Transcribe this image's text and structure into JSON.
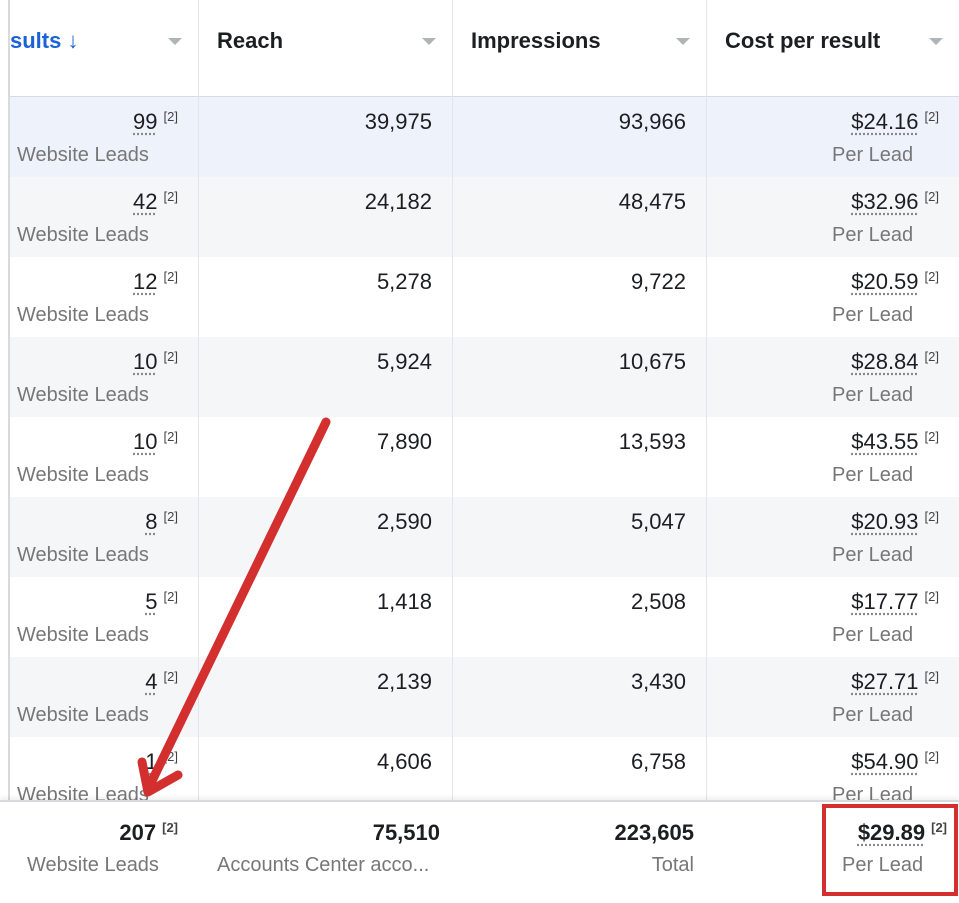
{
  "columns": [
    {
      "label": "sults ↓",
      "sorted": true
    },
    {
      "label": "Reach"
    },
    {
      "label": "Impressions"
    },
    {
      "label": "Cost per result"
    }
  ],
  "footnote": "[2]",
  "rows": [
    {
      "results": "99",
      "result_type": "Website Leads",
      "reach": "39,975",
      "impressions": "93,966",
      "cost": "$24.16",
      "cost_type": "Per Lead"
    },
    {
      "results": "42",
      "result_type": "Website Leads",
      "reach": "24,182",
      "impressions": "48,475",
      "cost": "$32.96",
      "cost_type": "Per Lead"
    },
    {
      "results": "12",
      "result_type": "Website Leads",
      "reach": "5,278",
      "impressions": "9,722",
      "cost": "$20.59",
      "cost_type": "Per Lead"
    },
    {
      "results": "10",
      "result_type": "Website Leads",
      "reach": "5,924",
      "impressions": "10,675",
      "cost": "$28.84",
      "cost_type": "Per Lead"
    },
    {
      "results": "10",
      "result_type": "Website Leads",
      "reach": "7,890",
      "impressions": "13,593",
      "cost": "$43.55",
      "cost_type": "Per Lead"
    },
    {
      "results": "8",
      "result_type": "Website Leads",
      "reach": "2,590",
      "impressions": "5,047",
      "cost": "$20.93",
      "cost_type": "Per Lead"
    },
    {
      "results": "5",
      "result_type": "Website Leads",
      "reach": "1,418",
      "impressions": "2,508",
      "cost": "$17.77",
      "cost_type": "Per Lead"
    },
    {
      "results": "4",
      "result_type": "Website Leads",
      "reach": "2,139",
      "impressions": "3,430",
      "cost": "$27.71",
      "cost_type": "Per Lead"
    },
    {
      "results": "1",
      "result_type": "Website Leads",
      "reach": "4,606",
      "impressions": "6,758",
      "cost": "$54.90",
      "cost_type": "Per Lead"
    }
  ],
  "totals": {
    "results": "207",
    "result_type": "Website Leads",
    "reach": "75,510",
    "reach_type": "Accounts Center acco...",
    "impressions": "223,605",
    "impressions_type": "Total",
    "cost": "$29.89",
    "cost_type": "Per Lead"
  },
  "colors": {
    "header_sorted": "#1a63d6",
    "annotation": "#d32f2f",
    "row_selected": "#eef3fb",
    "row_alt": "#f5f6f7"
  }
}
